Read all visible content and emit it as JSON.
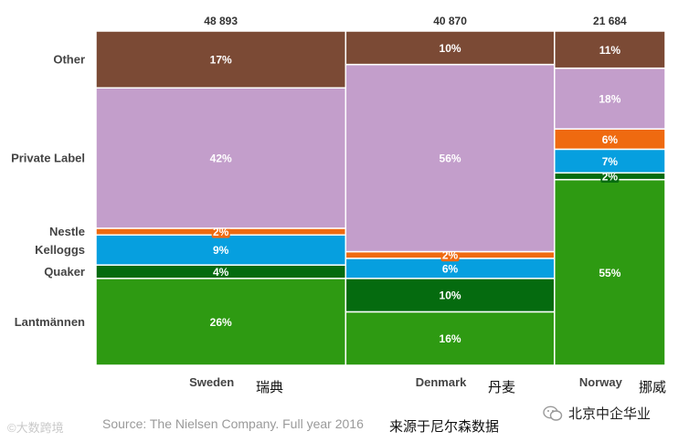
{
  "chart_data": {
    "type": "mekko",
    "y_categories": [
      "Other",
      "Private Label",
      "Nestle",
      "Kelloggs",
      "Quaker",
      "Lantmännen"
    ],
    "columns": [
      {
        "label": "Sweden",
        "label_cn": "瑞典",
        "total": 48893,
        "total_label": "48 893",
        "shares": {
          "Lantmännen": 26,
          "Quaker": 4,
          "Kelloggs": 9,
          "Nestle": 2,
          "Private Label": 42,
          "Other": 17
        }
      },
      {
        "label": "Denmark",
        "label_cn": "丹麦",
        "total": 40870,
        "total_label": "40 870",
        "shares": {
          "Lantmännen": 16,
          "Quaker": 10,
          "Kelloggs": 6,
          "Nestle": 2,
          "Private Label": 56,
          "Other": 10
        }
      },
      {
        "label": "Norway",
        "label_cn": "挪威",
        "total": 21684,
        "total_label": "21 684",
        "shares": {
          "Lantmännen": 55,
          "Quaker": 2,
          "Kelloggs": 7,
          "Nestle": 6,
          "Private Label": 18,
          "Other": 11
        }
      }
    ],
    "colors": {
      "Lantmännen": "#2e9a12",
      "Quaker": "#056b0f",
      "Kelloggs": "#069fdf",
      "Nestle": "#ef6a10",
      "Private Label": "#c39ecb",
      "Other": "#7b4a35"
    }
  },
  "source": "Source: The Nielsen Company. Full year 2016",
  "source_cn": "来源于尼尔森数据",
  "watermark_left": "©大数跨境",
  "watermark_right": "北京中企华业"
}
